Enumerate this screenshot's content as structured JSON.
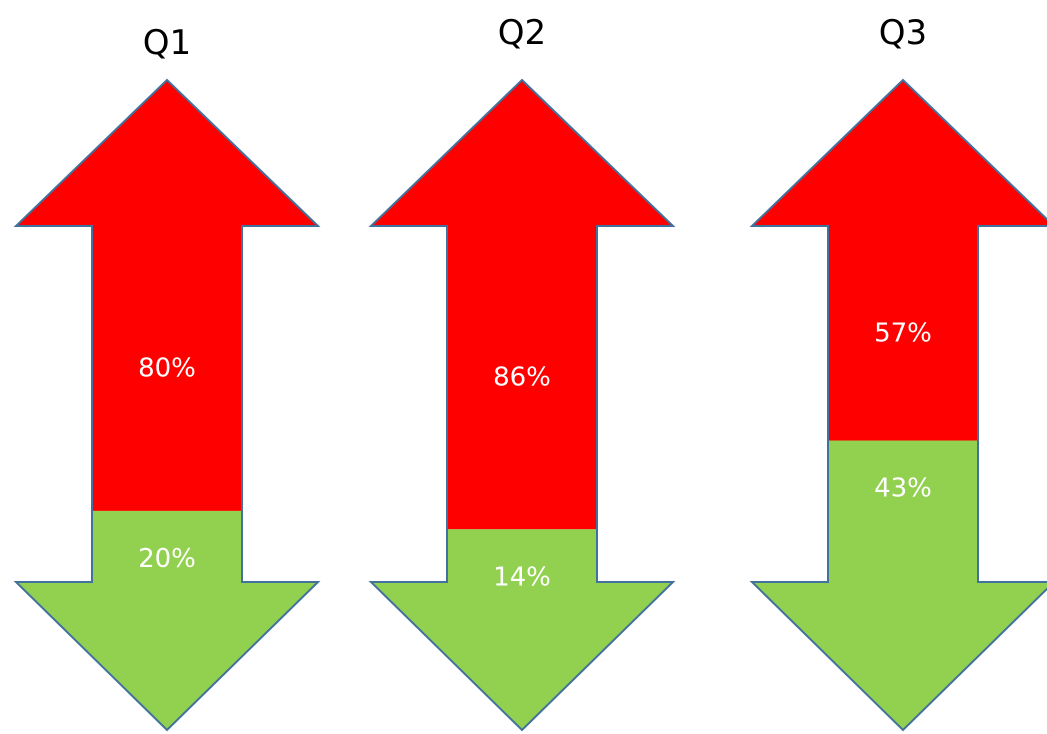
{
  "chart_data": {
    "type": "bar",
    "categories": [
      "Q1",
      "Q2",
      "Q3"
    ],
    "series": [
      {
        "values": [
          80,
          86,
          57
        ],
        "color": "#ff0000"
      },
      {
        "values": [
          20,
          14,
          43
        ],
        "color": "#92d050"
      }
    ],
    "labels": [
      {
        "up": "80%",
        "down": "20%"
      },
      {
        "up": "86%",
        "down": "14%"
      },
      {
        "up": "57%",
        "down": "43%"
      }
    ],
    "title": "",
    "xlabel": "",
    "ylabel": "",
    "ylim": [
      0,
      100
    ],
    "grid": false,
    "legend": "none",
    "up_color": "#ff0000",
    "down_color": "#92d050",
    "outline_color": "#41719c"
  }
}
